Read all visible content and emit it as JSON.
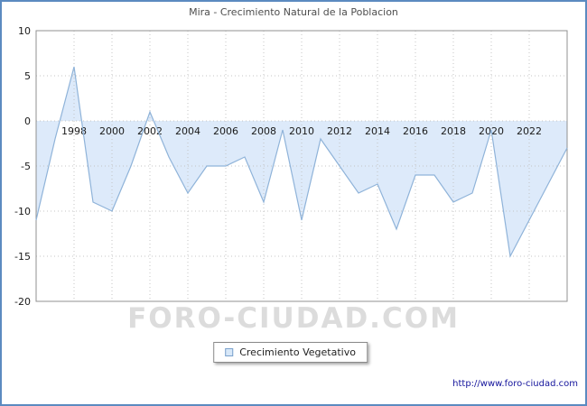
{
  "watermark": "FORO-CIUDAD.COM",
  "footer_url": "http://www.foro-ciudad.com",
  "chart_data": {
    "type": "area",
    "title": "Mira - Crecimiento Natural de la Poblacion",
    "legend_label": "Crecimiento Vegetativo",
    "legend_position": "bottom-center",
    "grid": true,
    "baseline": 0,
    "x_range": [
      1996,
      2024
    ],
    "ylim": [
      -20,
      10
    ],
    "yticks": [
      10,
      5,
      0,
      -5,
      -10,
      -15,
      -20
    ],
    "xticks": [
      1998,
      2000,
      2002,
      2004,
      2006,
      2008,
      2010,
      2012,
      2014,
      2016,
      2018,
      2020,
      2022
    ],
    "x": [
      1996,
      1997,
      1998,
      1999,
      2000,
      2001,
      2002,
      2003,
      2004,
      2005,
      2006,
      2007,
      2008,
      2009,
      2010,
      2011,
      2012,
      2013,
      2014,
      2015,
      2016,
      2017,
      2018,
      2019,
      2020,
      2021,
      2022,
      2023,
      2024
    ],
    "values": [
      -11,
      -2,
      6,
      -9,
      -10,
      -5,
      1,
      -4,
      -8,
      -5,
      -5,
      -4,
      -9,
      -1,
      -11,
      -2,
      -5,
      -8,
      -7,
      -12,
      -6,
      -6,
      -9,
      -8,
      -1,
      -15,
      -11,
      -7,
      -3
    ],
    "line_color": "#8fb3d9",
    "fill_color": "#ddeafa",
    "grid_color": "#c4c4c4",
    "plot_border_color": "#909090"
  }
}
